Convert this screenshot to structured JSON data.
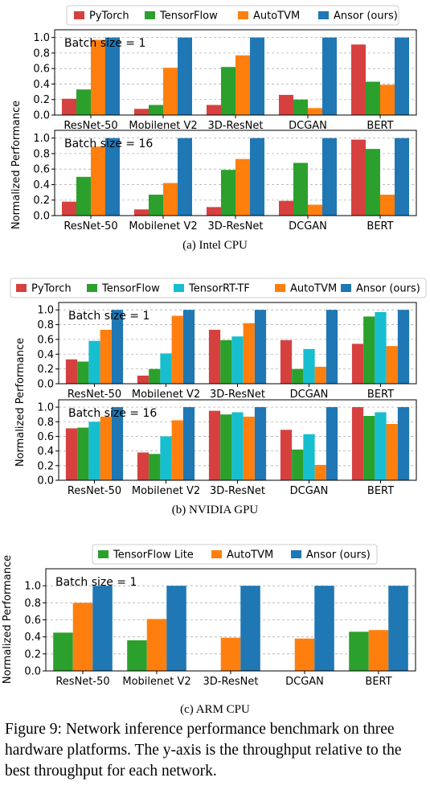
{
  "colors": {
    "PyTorch": "#d6413f",
    "TensorFlow": "#2ca02c",
    "TensorRT-TF": "#17becf",
    "AutoTVM": "#ff7f0e",
    "Ansor (ours)": "#1f77b4",
    "TensorFlow Lite": "#2ca02c"
  },
  "captions": {
    "a": "(a) Intel CPU",
    "b": "(b) NVIDIA GPU",
    "c": "(c) ARM CPU",
    "figure": "Figure 9: Network inference performance benchmark on three hardware platforms. The y-axis is the throughput relative to the best throughput for each network."
  },
  "chart_data": [
    {
      "type": "bar",
      "platform": "Intel CPU",
      "ylabel": "Normalized Performance",
      "ylim": [
        0,
        1.1
      ],
      "yticks": [
        "0.0",
        "0.2",
        "0.4",
        "0.6",
        "0.8",
        "1.0"
      ],
      "legend": [
        "PyTorch",
        "TensorFlow",
        "AutoTVM",
        "Ansor (ours)"
      ],
      "legend_position": "top",
      "grid": "y-dashed",
      "categories": [
        "ResNet-50",
        "Mobilenet V2",
        "3D-ResNet",
        "DCGAN",
        "BERT"
      ],
      "panels": [
        {
          "title": "Batch size = 1",
          "series": [
            {
              "name": "PyTorch",
              "values": [
                0.21,
                0.08,
                0.13,
                0.26,
                0.91
              ]
            },
            {
              "name": "TensorFlow",
              "values": [
                0.33,
                0.13,
                0.62,
                0.2,
                0.43
              ]
            },
            {
              "name": "AutoTVM",
              "values": [
                0.97,
                0.61,
                0.77,
                0.09,
                0.39
              ]
            },
            {
              "name": "Ansor (ours)",
              "values": [
                1.0,
                1.0,
                1.0,
                1.0,
                1.0
              ]
            }
          ]
        },
        {
          "title": "Batch size = 16",
          "series": [
            {
              "name": "PyTorch",
              "values": [
                0.18,
                0.08,
                0.11,
                0.19,
                0.98
              ]
            },
            {
              "name": "TensorFlow",
              "values": [
                0.5,
                0.27,
                0.59,
                0.68,
                0.86
              ]
            },
            {
              "name": "AutoTVM",
              "values": [
                0.89,
                0.42,
                0.73,
                0.14,
                0.27
              ]
            },
            {
              "name": "Ansor (ours)",
              "values": [
                1.0,
                1.0,
                1.0,
                1.0,
                1.0
              ]
            }
          ]
        }
      ]
    },
    {
      "type": "bar",
      "platform": "NVIDIA GPU",
      "ylabel": "Normalized Performance",
      "ylim": [
        0,
        1.1
      ],
      "yticks": [
        "0.0",
        "0.2",
        "0.4",
        "0.6",
        "0.8",
        "1.0"
      ],
      "legend": [
        "PyTorch",
        "TensorFlow",
        "TensorRT-TF",
        "AutoTVM",
        "Ansor (ours)"
      ],
      "legend_position": "top",
      "grid": "y-dashed",
      "categories": [
        "ResNet-50",
        "Mobilenet V2",
        "3D-ResNet",
        "DCGAN",
        "BERT"
      ],
      "panels": [
        {
          "title": "Batch size = 1",
          "series": [
            {
              "name": "PyTorch",
              "values": [
                0.33,
                0.11,
                0.73,
                0.59,
                0.54
              ]
            },
            {
              "name": "TensorFlow",
              "values": [
                0.3,
                0.2,
                0.59,
                0.2,
                0.91
              ]
            },
            {
              "name": "TensorRT-TF",
              "values": [
                0.58,
                0.41,
                0.64,
                0.47,
                0.97
              ]
            },
            {
              "name": "AutoTVM",
              "values": [
                0.73,
                0.92,
                0.82,
                0.23,
                0.51
              ]
            },
            {
              "name": "Ansor (ours)",
              "values": [
                1.0,
                1.0,
                1.0,
                1.0,
                1.0
              ]
            }
          ]
        },
        {
          "title": "Batch size = 16",
          "series": [
            {
              "name": "PyTorch",
              "values": [
                0.71,
                0.38,
                0.95,
                0.69,
                1.0
              ]
            },
            {
              "name": "TensorFlow",
              "values": [
                0.72,
                0.36,
                0.9,
                0.42,
                0.88
              ]
            },
            {
              "name": "TensorRT-TF",
              "values": [
                0.8,
                0.6,
                0.93,
                0.63,
                0.93
              ]
            },
            {
              "name": "AutoTVM",
              "values": [
                0.87,
                0.82,
                0.87,
                0.21,
                0.77
              ]
            },
            {
              "name": "Ansor (ours)",
              "values": [
                1.0,
                1.0,
                1.0,
                1.0,
                1.0
              ]
            }
          ]
        }
      ]
    },
    {
      "type": "bar",
      "platform": "ARM CPU",
      "ylabel": "Normalized Performance",
      "ylim": [
        0,
        1.2
      ],
      "yticks": [
        "0.0",
        "0.2",
        "0.4",
        "0.6",
        "0.8",
        "1.0"
      ],
      "legend": [
        "TensorFlow Lite",
        "AutoTVM",
        "Ansor (ours)"
      ],
      "legend_position": "top",
      "grid": "y-dashed",
      "categories": [
        "ResNet-50",
        "Mobilenet V2",
        "3D-ResNet",
        "DCGAN",
        "BERT"
      ],
      "panels": [
        {
          "title": "Batch size = 1",
          "series": [
            {
              "name": "TensorFlow Lite",
              "values": [
                0.45,
                0.36,
                null,
                null,
                0.46
              ]
            },
            {
              "name": "AutoTVM",
              "values": [
                0.8,
                0.61,
                0.39,
                0.38,
                0.48
              ]
            },
            {
              "name": "Ansor (ours)",
              "values": [
                1.0,
                1.0,
                1.0,
                1.0,
                1.0
              ]
            }
          ]
        }
      ]
    }
  ]
}
